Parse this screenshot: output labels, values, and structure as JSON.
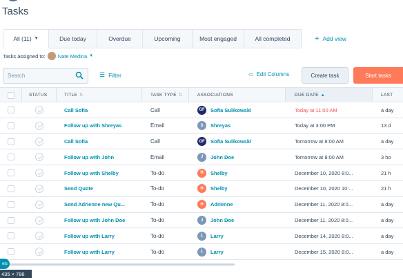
{
  "page": {
    "title": "Tasks"
  },
  "tabs": [
    {
      "label": "All (11)",
      "active": true
    },
    {
      "label": "Due today"
    },
    {
      "label": "Overdue"
    },
    {
      "label": "Upcoming"
    },
    {
      "label": "Most engaged"
    },
    {
      "label": "All completed"
    }
  ],
  "add_view": "Add view",
  "assigned": {
    "label": "Tasks assigned to:",
    "owner": "Nate Medina"
  },
  "toolbar": {
    "search_placeholder": "Search",
    "filter": "Filter",
    "edit_columns": "Edit Columns",
    "create_task": "Create task",
    "start_tasks": "Start tasks"
  },
  "columns": {
    "status": "STATUS",
    "title": "TITLE",
    "task_type": "TASK TYPE",
    "associations": "ASSOCIATIONS",
    "due_date": "DUE DATE",
    "last": "LAST"
  },
  "rows": [
    {
      "title": "Call Sofia",
      "type": "Call",
      "assoc": "Sofia Sulikowski",
      "assoc_initials": "GF",
      "assoc_color": "#1f2a6b",
      "due": "Today at 11:00 AM",
      "overdue": true,
      "last": "a day"
    },
    {
      "title": "Follow up with Shreyas",
      "type": "Email",
      "assoc": "Shreyas",
      "assoc_initials": "S",
      "assoc_color": "#7c98b6",
      "due": "Today at 3:00 PM",
      "overdue": false,
      "last": "13 d"
    },
    {
      "title": "Call Sofia",
      "type": "Call",
      "assoc": "Sofia Sulikowski",
      "assoc_initials": "GF",
      "assoc_color": "#1f2a6b",
      "due": "Tomorrow at 8:00 AM",
      "overdue": false,
      "last": "a day"
    },
    {
      "title": "Follow up with John",
      "type": "Email",
      "assoc": "John Doe",
      "assoc_initials": "J",
      "assoc_color": "#7c98b6",
      "due": "Tomorrow at 8:00 AM",
      "overdue": false,
      "last": "3 ho"
    },
    {
      "title": "Follow up with Shelby",
      "type": "To-do",
      "assoc": "Shelby",
      "assoc_initials": "H",
      "assoc_color": "#ff7a59",
      "due": "December 10, 2020 8:0...",
      "overdue": false,
      "last": "21 h"
    },
    {
      "title": "Send Quote",
      "type": "To-do",
      "assoc": "Shelby",
      "assoc_initials": "H",
      "assoc_color": "#ff7a59",
      "due": "December 10, 2020 10:...",
      "overdue": false,
      "last": "21 h"
    },
    {
      "title": "Send Adrienne new Qu...",
      "type": "To-do",
      "assoc": "Adrienne",
      "assoc_initials": "H",
      "assoc_color": "#ff7a59",
      "due": "December 11, 2020 8:0...",
      "overdue": false,
      "last": "a day"
    },
    {
      "title": "Follow up with John Doe",
      "type": "To-do",
      "assoc": "John Doe",
      "assoc_initials": "J",
      "assoc_color": "#7c98b6",
      "due": "December 11, 2020 8:0...",
      "overdue": false,
      "last": "a day"
    },
    {
      "title": "Follow up with Larry",
      "type": "To-do",
      "assoc": "Larry",
      "assoc_initials": "L",
      "assoc_color": "#7c98b6",
      "due": "December 14, 2020 8:0...",
      "overdue": false,
      "last": "a day"
    },
    {
      "title": "Follow up with Larry",
      "type": "To-do",
      "assoc": "Larry",
      "assoc_initials": "L",
      "assoc_color": "#7c98b6",
      "due": "December 15, 2020 8:0...",
      "overdue": false,
      "last": "a day"
    }
  ],
  "overlay": {
    "size_badge": "435 × 786",
    "side_pill": "ets"
  }
}
